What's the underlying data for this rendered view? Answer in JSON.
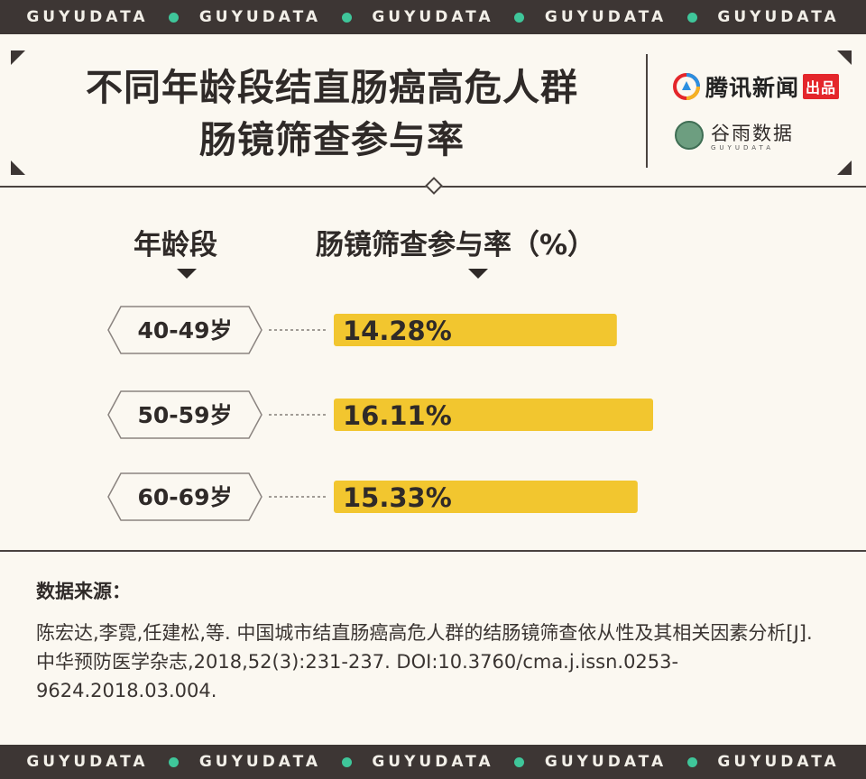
{
  "band": {
    "word": "GUYUDATA",
    "repeat": 5
  },
  "header": {
    "title_line1": "不同年龄段结直肠癌高危人群",
    "title_line2": "肠镜筛查参与率",
    "tencent_name": "腾讯新闻",
    "tencent_badge": "出品",
    "guyu_name": "谷雨数据",
    "guyu_sub": "GUYUDATA"
  },
  "colors": {
    "bar": "#f2c62f",
    "dark": "#3d3634",
    "accent_dot": "#3fc69a",
    "badge_red": "#e4262b"
  },
  "chart_data": {
    "type": "bar",
    "orientation": "horizontal",
    "category_header": "年龄段",
    "value_header": "肠镜筛查参与率（%）",
    "categories": [
      "40-49岁",
      "50-59岁",
      "60-69岁"
    ],
    "values": [
      14.28,
      16.11,
      15.33
    ],
    "value_labels": [
      "14.28%",
      "16.11%",
      "15.33%"
    ],
    "unit": "%"
  },
  "source": {
    "label": "数据来源：",
    "text": "陈宏达,李霓,任建松,等. 中国城市结直肠癌高危人群的结肠镜筛查依从性及其相关因素分析[J]. 中华预防医学杂志,2018,52(3):231-237. DOI:10.3760/cma.j.issn.0253-9624.2018.03.004."
  }
}
